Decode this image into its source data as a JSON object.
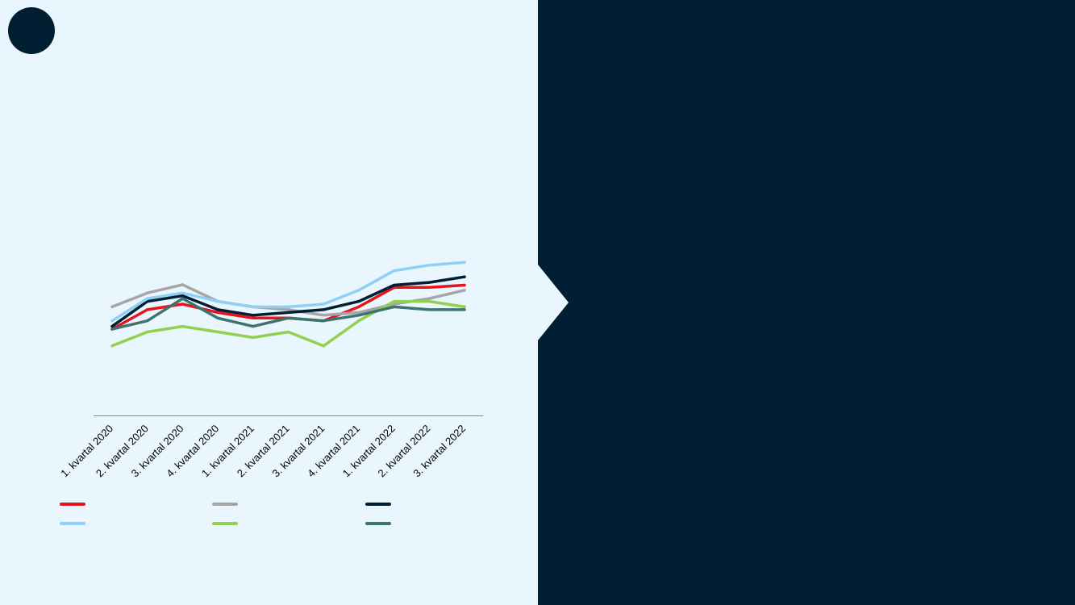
{
  "colors": {
    "background": "#eaf6fe",
    "panel": "#001f33",
    "axis": "#8a8a8a"
  },
  "icons": {
    "logo": "solid-navy-circle"
  },
  "chart_data": {
    "type": "line",
    "title": "",
    "xlabel": "",
    "ylabel": "",
    "categories": [
      "1. kvartal 2020",
      "2. kvartal 2020",
      "3. kvartal 2020",
      "4. kvartal 2020",
      "1. kvartal 2021",
      "2. kvartal 2021",
      "3. kvartal 2021",
      "4. kvartal 2021",
      "1. kvartal 2022",
      "2. kvartal 2022",
      "3. kvartal 2022"
    ],
    "ylim": [
      0,
      100
    ],
    "grid": false,
    "legend_position": "bottom",
    "series": [
      {
        "color": "#e8141c",
        "values": [
          31,
          38,
          40,
          37,
          35,
          35,
          34,
          39,
          46,
          46,
          46.8
        ]
      },
      {
        "color": "#a6a6a6",
        "values": [
          39,
          44,
          47,
          41,
          39,
          38,
          36,
          37,
          40,
          42,
          45
        ]
      },
      {
        "color": "#001f33",
        "values": [
          32,
          41,
          43,
          38,
          36,
          37,
          38,
          41,
          46.8,
          47.8,
          49.8
        ]
      },
      {
        "color": "#8fd0f7",
        "values": [
          34,
          42,
          44,
          41,
          39,
          39,
          40,
          45,
          52,
          54,
          55
        ]
      },
      {
        "color": "#92d050",
        "values": [
          25,
          30,
          32,
          30,
          28,
          30,
          25,
          34,
          41,
          41,
          39
        ]
      },
      {
        "color": "#3e7470",
        "values": [
          31,
          34,
          42,
          35,
          32,
          35,
          34,
          36,
          39,
          38,
          38
        ]
      }
    ]
  }
}
